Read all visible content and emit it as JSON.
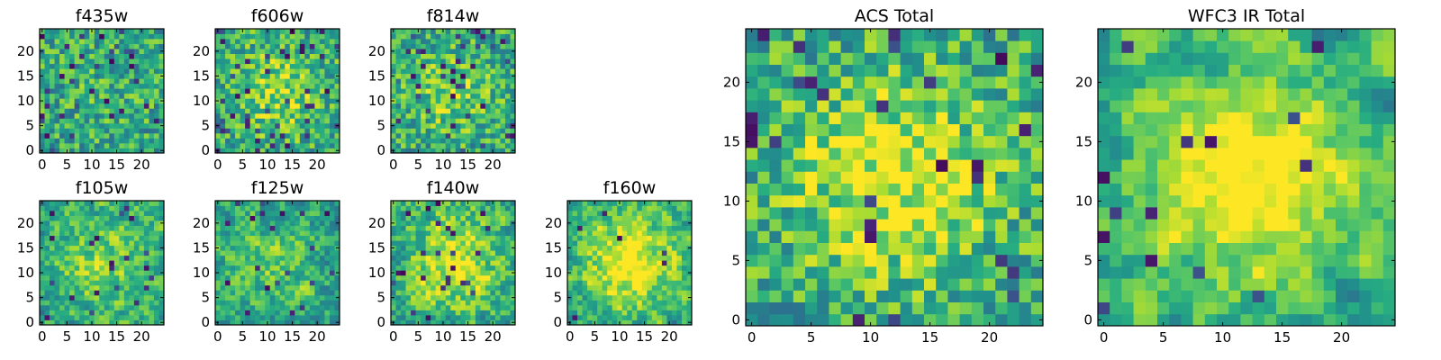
{
  "figure": {
    "panel_titles": [
      "f435w",
      "f606w",
      "f814w",
      "f105w",
      "f125w",
      "f140w",
      "f160w",
      "ACS Total",
      "WFC3 IR Total"
    ]
  },
  "chart_data": [
    {
      "type": "heatmap",
      "title": "f435w",
      "grid_size": 25,
      "seed": 11,
      "smooth": 0,
      "center_boost": 0.05,
      "dark_fraction": 0.06,
      "x_ticks": [
        0,
        5,
        10,
        15,
        20
      ],
      "y_ticks": [
        0,
        5,
        10,
        15,
        20
      ],
      "colormap": "viridis"
    },
    {
      "type": "heatmap",
      "title": "f606w",
      "grid_size": 25,
      "seed": 23,
      "smooth": 0,
      "center_boost": 0.25,
      "dark_fraction": 0.06,
      "x_ticks": [
        0,
        5,
        10,
        15,
        20
      ],
      "y_ticks": [
        0,
        5,
        10,
        15,
        20
      ],
      "colormap": "viridis"
    },
    {
      "type": "heatmap",
      "title": "f814w",
      "grid_size": 25,
      "seed": 37,
      "smooth": 0,
      "center_boost": 0.2,
      "dark_fraction": 0.07,
      "x_ticks": [
        0,
        5,
        10,
        15,
        20
      ],
      "y_ticks": [
        0,
        5,
        10,
        15,
        20
      ],
      "colormap": "viridis"
    },
    {
      "type": "heatmap",
      "title": "f105w",
      "grid_size": 25,
      "seed": 41,
      "smooth": 1,
      "center_boost": 0.25,
      "dark_fraction": 0.04,
      "x_ticks": [
        0,
        5,
        10,
        15,
        20
      ],
      "y_ticks": [
        0,
        5,
        10,
        15,
        20
      ],
      "colormap": "viridis"
    },
    {
      "type": "heatmap",
      "title": "f125w",
      "grid_size": 25,
      "seed": 53,
      "smooth": 1,
      "center_boost": 0.15,
      "dark_fraction": 0.04,
      "x_ticks": [
        0,
        5,
        10,
        15,
        20
      ],
      "y_ticks": [
        0,
        5,
        10,
        15,
        20
      ],
      "colormap": "viridis"
    },
    {
      "type": "heatmap",
      "title": "f140w",
      "grid_size": 25,
      "seed": 67,
      "smooth": 1,
      "center_boost": 0.35,
      "dark_fraction": 0.03,
      "x_ticks": [
        0,
        5,
        10,
        15,
        20
      ],
      "y_ticks": [
        0,
        5,
        10,
        15,
        20
      ],
      "colormap": "viridis"
    },
    {
      "type": "heatmap",
      "title": "f160w",
      "grid_size": 25,
      "seed": 79,
      "smooth": 1,
      "center_boost": 0.45,
      "dark_fraction": 0.02,
      "x_ticks": [
        0,
        5,
        10,
        15,
        20
      ],
      "y_ticks": [
        0,
        5,
        10,
        15,
        20
      ],
      "colormap": "viridis"
    },
    {
      "type": "heatmap",
      "title": "ACS Total",
      "grid_size": 25,
      "seed": 97,
      "smooth": 0,
      "center_boost": 0.35,
      "dark_fraction": 0.05,
      "x_ticks": [
        0,
        5,
        10,
        15,
        20
      ],
      "y_ticks": [
        0,
        5,
        10,
        15,
        20
      ],
      "colormap": "viridis"
    },
    {
      "type": "heatmap",
      "title": "WFC3 IR Total",
      "grid_size": 25,
      "seed": 113,
      "smooth": 2,
      "center_boost": 0.45,
      "dark_fraction": 0.03,
      "x_ticks": [
        0,
        5,
        10,
        15,
        20
      ],
      "y_ticks": [
        0,
        5,
        10,
        15,
        20
      ],
      "colormap": "viridis"
    }
  ]
}
